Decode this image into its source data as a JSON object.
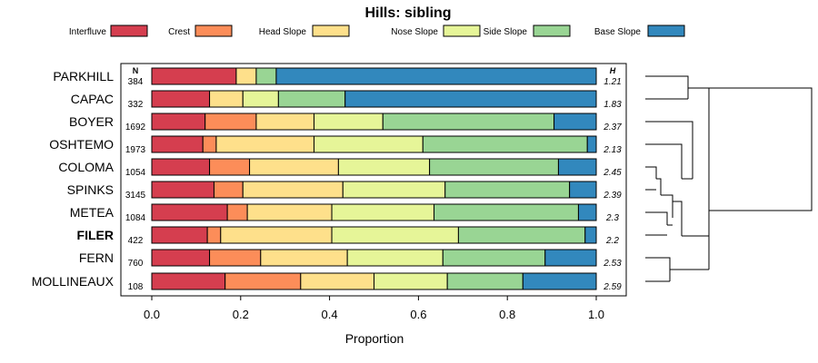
{
  "chart_data": {
    "type": "bar",
    "orientation": "horizontal",
    "stacked": true,
    "title": "Hills: sibling",
    "xlabel": "Proportion",
    "xlim": [
      0,
      1
    ],
    "xticks": [
      "0.0",
      "0.2",
      "0.4",
      "0.6",
      "0.8",
      "1.0"
    ],
    "n_header": "N",
    "h_header": "H",
    "categories": [
      "PARKHILL",
      "CAPAC",
      "BOYER",
      "OSHTEMO",
      "COLOMA",
      "SPINKS",
      "METEA",
      "FILER",
      "FERN",
      "MOLLINEAUX"
    ],
    "highlight": "FILER",
    "n": [
      "384",
      "332",
      "1692",
      "1973",
      "1054",
      "3145",
      "1084",
      "422",
      "760",
      "108"
    ],
    "h": [
      "1.21",
      "1.83",
      "2.37",
      "2.13",
      "2.45",
      "2.39",
      "2.3",
      "2.2",
      "2.53",
      "2.59"
    ],
    "series": [
      {
        "name": "Interfluve",
        "color": "#D53E4F",
        "values": [
          0.19,
          0.13,
          0.12,
          0.115,
          0.13,
          0.14,
          0.17,
          0.125,
          0.13,
          0.165
        ]
      },
      {
        "name": "Crest",
        "color": "#FC8D59",
        "values": [
          0.0,
          0.0,
          0.115,
          0.03,
          0.09,
          0.065,
          0.045,
          0.03,
          0.115,
          0.17
        ]
      },
      {
        "name": "Head Slope",
        "color": "#FEE08B",
        "values": [
          0.045,
          0.075,
          0.13,
          0.22,
          0.2,
          0.225,
          0.19,
          0.25,
          0.195,
          0.165
        ]
      },
      {
        "name": "Nose Slope",
        "color": "#E6F598",
        "values": [
          0.0,
          0.08,
          0.155,
          0.245,
          0.205,
          0.23,
          0.23,
          0.285,
          0.215,
          0.165
        ]
      },
      {
        "name": "Side Slope",
        "color": "#99D594",
        "values": [
          0.045,
          0.15,
          0.385,
          0.37,
          0.29,
          0.28,
          0.325,
          0.285,
          0.23,
          0.17
        ]
      },
      {
        "name": "Base Slope",
        "color": "#3288BD",
        "values": [
          0.72,
          0.565,
          0.095,
          0.02,
          0.085,
          0.06,
          0.04,
          0.025,
          0.115,
          0.165
        ]
      }
    ]
  }
}
